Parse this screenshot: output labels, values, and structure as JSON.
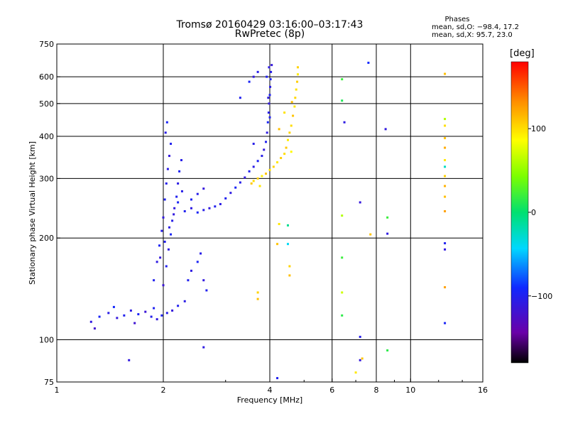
{
  "header": {
    "title": "Tromsø 20160429 03:16:00–03:17:43",
    "subtitle": "RwPretec (8p)"
  },
  "phase_stats": {
    "title": "Phases",
    "o_line": "mean, sd,O: −98.4, 17.2",
    "x_line": "mean, sd,X:  95.7, 23.0"
  },
  "colorbar": {
    "unit": "[deg]",
    "ticks": [
      "100",
      "0",
      "−100"
    ],
    "tick_values": [
      100,
      0,
      -100
    ],
    "range": [
      -180,
      180
    ]
  },
  "chart_data": {
    "type": "scatter",
    "xlabel": "Frequency [MHz]",
    "ylabel": "Stationary phase Virtual Height [km]",
    "xscale": "log",
    "yscale": "log",
    "xlim": [
      1,
      16
    ],
    "ylim": [
      75,
      750
    ],
    "xticks": [
      {
        "value": 1,
        "label": "1"
      },
      {
        "value": 2,
        "label": "2"
      },
      {
        "value": 4,
        "label": "4"
      },
      {
        "value": 6,
        "label": "6"
      },
      {
        "value": 8,
        "label": "8"
      },
      {
        "value": 10,
        "label": "10"
      },
      {
        "value": 16,
        "label": "16"
      }
    ],
    "yticks": [
      {
        "value": 75,
        "label": "75"
      },
      {
        "value": 100,
        "label": "100"
      },
      {
        "value": 200,
        "label": "200"
      },
      {
        "value": 300,
        "label": "300"
      },
      {
        "value": 400,
        "label": "400"
      },
      {
        "value": 500,
        "label": "500"
      },
      {
        "value": 600,
        "label": "600"
      },
      {
        "value": 750,
        "label": "750"
      }
    ],
    "grid_x": [
      2,
      4,
      6,
      8,
      10
    ],
    "grid_y": [
      100,
      200,
      300,
      400,
      500,
      600
    ],
    "series": [
      {
        "points": [
          [
            1.25,
            113,
            -110
          ],
          [
            1.32,
            117,
            -95
          ],
          [
            1.4,
            120,
            -105
          ],
          [
            1.48,
            116,
            -112
          ],
          [
            1.55,
            118,
            -100
          ],
          [
            1.62,
            122,
            -108
          ],
          [
            1.7,
            119,
            -96
          ],
          [
            1.78,
            121,
            -115
          ],
          [
            1.85,
            117,
            -102
          ],
          [
            1.92,
            115,
            -110
          ],
          [
            1.98,
            118,
            -98
          ],
          [
            2.05,
            120,
            -104
          ],
          [
            2.12,
            122,
            -112
          ],
          [
            2.2,
            126,
            -100
          ],
          [
            1.28,
            108,
            -120
          ],
          [
            1.45,
            125,
            -92
          ],
          [
            1.66,
            112,
            -118
          ],
          [
            1.88,
            124,
            -99
          ],
          [
            1.88,
            150,
            -100
          ],
          [
            1.92,
            170,
            -108
          ],
          [
            1.95,
            190,
            -96
          ],
          [
            1.98,
            210,
            -104
          ],
          [
            2.0,
            230,
            -110
          ],
          [
            2.02,
            260,
            -98
          ],
          [
            2.04,
            290,
            -102
          ],
          [
            2.06,
            320,
            -106
          ],
          [
            2.08,
            350,
            -112
          ],
          [
            2.1,
            380,
            -100
          ],
          [
            2.03,
            410,
            -105
          ],
          [
            2.05,
            440,
            -95
          ],
          [
            2.0,
            145,
            -115
          ],
          [
            2.04,
            165,
            -100
          ],
          [
            2.07,
            185,
            -108
          ],
          [
            2.1,
            205,
            -96
          ],
          [
            2.12,
            225,
            -104
          ],
          [
            2.15,
            245,
            -110
          ],
          [
            2.18,
            265,
            -100
          ],
          [
            2.2,
            290,
            -106
          ],
          [
            2.22,
            315,
            -98
          ],
          [
            2.25,
            340,
            -104
          ],
          [
            1.96,
            175,
            -112
          ],
          [
            2.02,
            195,
            -100
          ],
          [
            2.08,
            215,
            -106
          ],
          [
            2.14,
            235,
            -110
          ],
          [
            2.2,
            255,
            -96
          ],
          [
            2.26,
            275,
            -104
          ],
          [
            2.3,
            240,
            -100
          ],
          [
            2.4,
            245,
            -108
          ],
          [
            2.5,
            238,
            -96
          ],
          [
            2.6,
            242,
            -104
          ],
          [
            2.7,
            245,
            -110
          ],
          [
            2.8,
            248,
            -100
          ],
          [
            2.9,
            252,
            -106
          ],
          [
            2.4,
            260,
            -98
          ],
          [
            2.5,
            270,
            -104
          ],
          [
            2.6,
            280,
            -112
          ],
          [
            2.35,
            150,
            -100
          ],
          [
            2.4,
            160,
            -108
          ],
          [
            2.5,
            170,
            -96
          ],
          [
            2.55,
            180,
            -104
          ],
          [
            2.6,
            150,
            -110
          ],
          [
            2.65,
            140,
            -100
          ],
          [
            2.3,
            130,
            -106
          ],
          [
            3.0,
            262,
            -100
          ],
          [
            3.1,
            272,
            -108
          ],
          [
            3.2,
            282,
            -96
          ],
          [
            3.3,
            292,
            -104
          ],
          [
            3.4,
            302,
            -110
          ],
          [
            3.5,
            315,
            -100
          ],
          [
            3.6,
            325,
            -106
          ],
          [
            3.7,
            338,
            -98
          ],
          [
            3.8,
            350,
            -104
          ],
          [
            3.85,
            365,
            -112
          ],
          [
            3.9,
            385,
            -100
          ],
          [
            3.93,
            410,
            -108
          ],
          [
            3.95,
            440,
            -96
          ],
          [
            3.97,
            470,
            -104
          ],
          [
            3.98,
            500,
            -110
          ],
          [
            4.0,
            530,
            -100
          ],
          [
            4.01,
            560,
            -106
          ],
          [
            4.02,
            590,
            -98
          ],
          [
            4.03,
            620,
            -104
          ],
          [
            4.05,
            650,
            -112
          ],
          [
            3.92,
            600,
            -100
          ],
          [
            3.98,
            640,
            -108
          ],
          [
            4.0,
            455,
            -100
          ],
          [
            3.96,
            520,
            -108
          ],
          [
            3.3,
            520,
            -100
          ],
          [
            3.5,
            580,
            -96
          ],
          [
            3.6,
            600,
            -110
          ],
          [
            3.7,
            620,
            -104
          ],
          [
            3.6,
            380,
            -104
          ],
          [
            2.6,
            95,
            -108
          ],
          [
            1.6,
            87,
            -110
          ],
          [
            4.2,
            77,
            -100
          ],
          [
            7.2,
            87,
            -112
          ],
          [
            7.2,
            102,
            -104
          ],
          [
            8.6,
            206,
            -108
          ],
          [
            12.5,
            185,
            -110
          ],
          [
            12.5,
            193,
            -100
          ],
          [
            6.5,
            440,
            -108
          ],
          [
            8.5,
            420,
            -110
          ],
          [
            7.2,
            255,
            -112
          ],
          [
            12.5,
            112,
            -96
          ]
        ]
      },
      {
        "points": [
          [
            3.6,
            295,
            100
          ],
          [
            3.7,
            300,
            105
          ],
          [
            3.8,
            305,
            92
          ],
          [
            3.9,
            310,
            110
          ],
          [
            4.0,
            318,
            98
          ],
          [
            4.1,
            325,
            104
          ],
          [
            4.2,
            335,
            96
          ],
          [
            4.3,
            345,
            106
          ],
          [
            4.4,
            355,
            100
          ],
          [
            4.45,
            370,
            108
          ],
          [
            4.5,
            390,
            94
          ],
          [
            4.55,
            410,
            104
          ],
          [
            4.6,
            430,
            100
          ],
          [
            4.65,
            460,
            110
          ],
          [
            4.7,
            490,
            96
          ],
          [
            4.72,
            520,
            102
          ],
          [
            4.75,
            550,
            98
          ],
          [
            4.78,
            580,
            106
          ],
          [
            4.8,
            610,
            94
          ],
          [
            4.8,
            640,
            104
          ],
          [
            3.55,
            290,
            108
          ],
          [
            3.75,
            285,
            96
          ],
          [
            4.25,
            420,
            112
          ],
          [
            4.6,
            360,
            88
          ],
          [
            4.62,
            505,
            112
          ],
          [
            4.4,
            470,
            98
          ],
          [
            4.55,
            155,
            112
          ],
          [
            4.55,
            165,
            104
          ],
          [
            4.2,
            192,
            110
          ],
          [
            4.25,
            220,
            96
          ],
          [
            4.5,
            218,
            -10
          ],
          [
            3.7,
            132,
            112
          ],
          [
            3.7,
            138,
            104
          ],
          [
            4.5,
            192,
            -40
          ],
          [
            6.4,
            590,
            20
          ],
          [
            6.4,
            510,
            10
          ],
          [
            6.4,
            233,
            60
          ],
          [
            6.4,
            175,
            20
          ],
          [
            6.4,
            138,
            70
          ],
          [
            6.4,
            118,
            15
          ],
          [
            7.0,
            80,
            95
          ],
          [
            7.3,
            88,
            110
          ],
          [
            7.6,
            660,
            -90
          ],
          [
            7.7,
            205,
            110
          ],
          [
            8.6,
            230,
            20
          ],
          [
            8.6,
            93,
            15
          ],
          [
            12.5,
            450,
            60
          ],
          [
            12.5,
            430,
            100
          ],
          [
            12.5,
            395,
            110
          ],
          [
            12.5,
            370,
            120
          ],
          [
            12.5,
            340,
            95
          ],
          [
            12.5,
            325,
            -25
          ],
          [
            12.5,
            305,
            105
          ],
          [
            12.5,
            285,
            118
          ],
          [
            12.5,
            265,
            112
          ],
          [
            12.5,
            240,
            125
          ],
          [
            12.5,
            612,
            112
          ],
          [
            12.5,
            143,
            125
          ]
        ]
      }
    ]
  }
}
